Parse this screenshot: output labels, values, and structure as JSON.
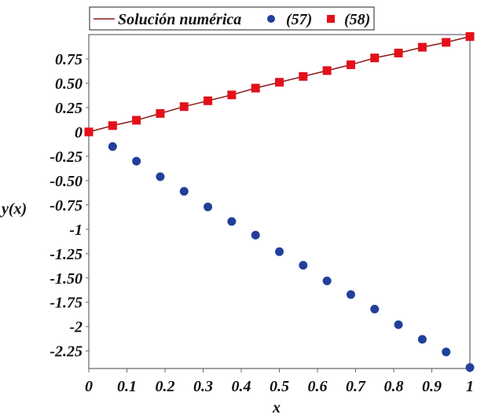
{
  "chart_data": {
    "type": "scatter",
    "title": "",
    "xlabel": "x",
    "ylabel": "y(x)",
    "xlim": [
      0,
      1
    ],
    "ylim": [
      -2.43,
      1.0
    ],
    "grid": false,
    "legend_position": "top",
    "x_ticks": [
      0,
      0.1,
      0.2,
      0.3,
      0.4,
      0.5,
      0.6,
      0.7,
      0.8,
      0.9,
      1
    ],
    "x_tick_labels": [
      "0",
      "0.1",
      "0.2",
      "0.3",
      "0.4",
      "0.5",
      "0.6",
      "0.7",
      "0.8",
      "0.9",
      "1"
    ],
    "y_ticks": [
      0.75,
      0.5,
      0.25,
      0,
      -0.25,
      -0.5,
      -0.75,
      -1,
      -1.25,
      -1.5,
      -1.75,
      -2,
      -2.25
    ],
    "y_tick_labels": [
      "0.75",
      "0.50",
      "0.25",
      "0",
      "-0.25",
      "-0.50",
      "-0.75",
      "-1",
      "-1.25",
      "-1.50",
      "-1.75",
      "-2",
      "-2.25"
    ],
    "x": [
      0,
      0.0625,
      0.125,
      0.1875,
      0.25,
      0.3125,
      0.375,
      0.4375,
      0.5,
      0.5625,
      0.625,
      0.6875,
      0.75,
      0.8125,
      0.875,
      0.9375,
      1
    ],
    "series": [
      {
        "name": "Solución numérica",
        "kind": "line",
        "color": "#8b1a1a",
        "values": [
          0,
          0.065,
          0.12,
          0.19,
          0.26,
          0.32,
          0.38,
          0.45,
          0.51,
          0.57,
          0.63,
          0.69,
          0.76,
          0.81,
          0.87,
          0.92,
          0.98
        ]
      },
      {
        "name": "(57)",
        "kind": "circle",
        "color": "#22409a",
        "values": [
          0,
          -0.15,
          -0.3,
          -0.46,
          -0.61,
          -0.77,
          -0.92,
          -1.06,
          -1.23,
          -1.37,
          -1.53,
          -1.67,
          -1.82,
          -1.98,
          -2.13,
          -2.26,
          -2.42
        ]
      },
      {
        "name": "(58)",
        "kind": "square",
        "color": "#e3101a",
        "values": [
          0,
          0.065,
          0.12,
          0.19,
          0.26,
          0.32,
          0.38,
          0.45,
          0.51,
          0.57,
          0.63,
          0.69,
          0.76,
          0.81,
          0.87,
          0.92,
          0.98
        ]
      }
    ]
  }
}
